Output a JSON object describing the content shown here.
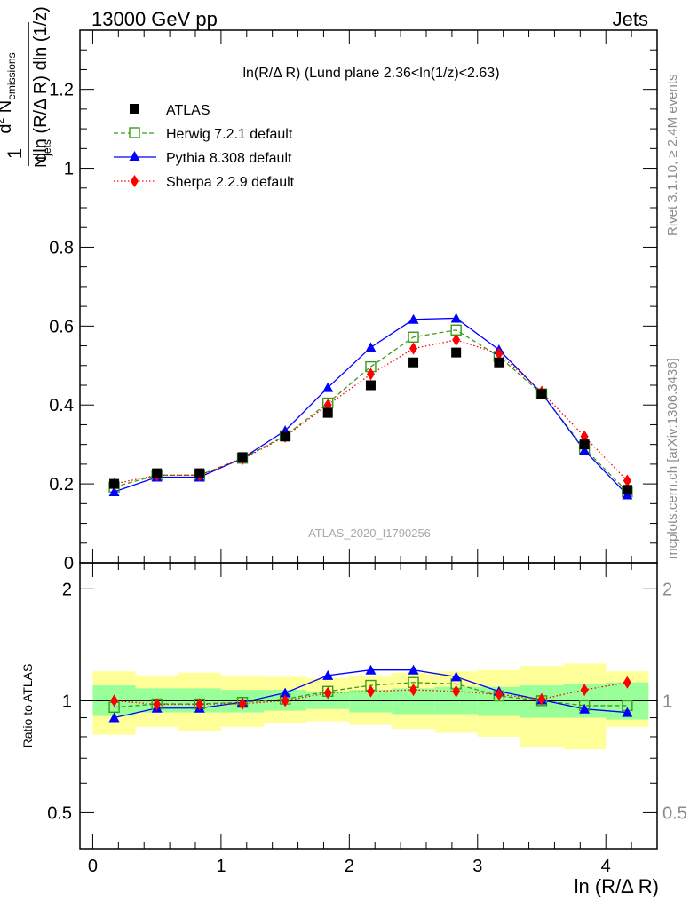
{
  "header": {
    "left": "13000 GeV pp",
    "right": "Jets"
  },
  "side_labels": {
    "rivet": "Rivet 3.1.10, ≥ 2.4M events",
    "mcplots": "mcplots.cern.ch [arXiv:1306.3436]"
  },
  "chart_data": {
    "type": "line",
    "title": "ln(R/Δ R) (Lund plane 2.36<ln(1/z)<2.63)",
    "watermark": "ATLAS_2020_I1790256",
    "xlabel": "ln (R/Δ R)",
    "ylabel": "1/N_jets d²N_emissions / dln(R/Δ R) dln(1/z)",
    "xlim": [
      -0.1,
      4.4
    ],
    "ylim": [
      0,
      1.35
    ],
    "x_ticks": [
      "0",
      "1",
      "2",
      "3",
      "4"
    ],
    "y_ticks": [
      "0",
      "0.2",
      "0.4",
      "0.6",
      "0.8",
      "1",
      "1.2"
    ],
    "legend_position": "top-left",
    "x": [
      0.167,
      0.5,
      0.833,
      1.167,
      1.5,
      1.833,
      2.167,
      2.5,
      2.833,
      3.167,
      3.5,
      3.833,
      4.167
    ],
    "series": [
      {
        "name": "ATLAS",
        "color": "#000000",
        "marker": "square",
        "values": [
          0.2,
          0.227,
          0.227,
          0.268,
          0.32,
          0.38,
          0.45,
          0.508,
          0.533,
          0.508,
          0.428,
          0.3,
          0.185
        ]
      },
      {
        "name": "Herwig 7.2.1 default",
        "color": "#3a9b1c",
        "marker": "open-square",
        "dash": "dashed",
        "values": [
          0.192,
          0.222,
          0.222,
          0.265,
          0.322,
          0.405,
          0.497,
          0.572,
          0.59,
          0.523,
          0.428,
          0.29,
          0.18
        ]
      },
      {
        "name": "Pythia 8.308 default",
        "color": "#0000ff",
        "marker": "triangle",
        "dash": "solid",
        "values": [
          0.18,
          0.217,
          0.217,
          0.265,
          0.335,
          0.444,
          0.546,
          0.617,
          0.62,
          0.54,
          0.43,
          0.285,
          0.172
        ]
      },
      {
        "name": "Sherpa 2.2.9 default",
        "color": "#ff0000",
        "marker": "diamond",
        "dash": "dotted",
        "values": [
          0.2,
          0.222,
          0.222,
          0.263,
          0.32,
          0.4,
          0.478,
          0.543,
          0.565,
          0.53,
          0.433,
          0.32,
          0.208
        ]
      }
    ],
    "ratio": {
      "ylabel": "Ratio to ATLAS",
      "ylim": [
        0.4,
        2.35
      ],
      "y_ticks": [
        "0.5",
        "1",
        "2"
      ],
      "y_ticks_right": [
        "0.5",
        "1",
        "2"
      ],
      "reference": 1,
      "bins": [
        0,
        0.333,
        0.667,
        1.0,
        1.333,
        1.667,
        2.0,
        2.333,
        2.667,
        3.0,
        3.333,
        3.667,
        4.0,
        4.333
      ],
      "band_inner": [
        [
          0.91,
          1.1
        ],
        [
          0.93,
          1.08
        ],
        [
          0.93,
          1.08
        ],
        [
          0.93,
          1.07
        ],
        [
          0.94,
          1.07
        ],
        [
          0.95,
          1.06
        ],
        [
          0.93,
          1.07
        ],
        [
          0.92,
          1.08
        ],
        [
          0.92,
          1.09
        ],
        [
          0.91,
          1.09
        ],
        [
          0.9,
          1.1
        ],
        [
          0.9,
          1.11
        ],
        [
          0.89,
          1.12
        ]
      ],
      "band_outer": [
        [
          0.81,
          1.2
        ],
        [
          0.85,
          1.17
        ],
        [
          0.83,
          1.19
        ],
        [
          0.85,
          1.17
        ],
        [
          0.87,
          1.16
        ],
        [
          0.88,
          1.15
        ],
        [
          0.86,
          1.17
        ],
        [
          0.84,
          1.19
        ],
        [
          0.82,
          1.2
        ],
        [
          0.8,
          1.21
        ],
        [
          0.75,
          1.24
        ],
        [
          0.74,
          1.26
        ],
        [
          0.85,
          1.2
        ]
      ],
      "series": [
        {
          "name": "Herwig 7.2.1 default",
          "values": [
            0.96,
            0.98,
            0.98,
            0.99,
            1.01,
            1.06,
            1.1,
            1.12,
            1.11,
            1.03,
            1.0,
            0.97,
            0.97
          ]
        },
        {
          "name": "Pythia 8.308 default",
          "values": [
            0.9,
            0.955,
            0.955,
            0.99,
            1.05,
            1.17,
            1.21,
            1.21,
            1.16,
            1.06,
            1.005,
            0.95,
            0.93
          ]
        },
        {
          "name": "Sherpa 2.2.9 default",
          "values": [
            1.0,
            0.978,
            0.978,
            0.981,
            1.0,
            1.05,
            1.06,
            1.07,
            1.06,
            1.04,
            1.01,
            1.07,
            1.12
          ]
        }
      ]
    }
  }
}
